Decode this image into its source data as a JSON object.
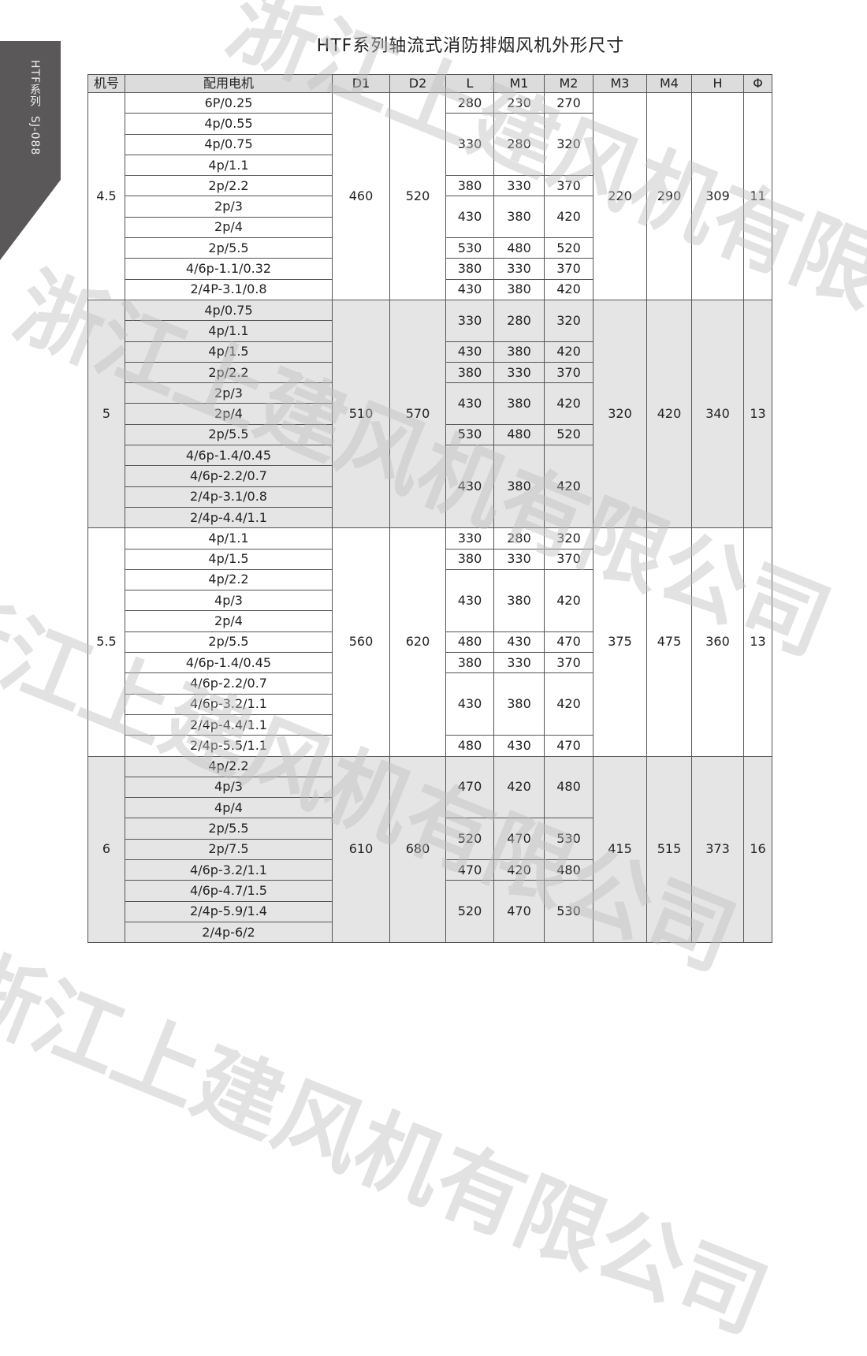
{
  "side_tab": {
    "text": "HTF系列  SJ-088"
  },
  "title": "HTF系列轴流式消防排烟风机外形尺寸",
  "watermark": "浙江上建风机有限公司",
  "colors": {
    "side_tab": "#5a5858",
    "shaded_section": "#e5e5e5",
    "header": "#dcdcdc"
  },
  "table": {
    "headers": [
      "机号",
      "配用电机",
      "D1",
      "D2",
      "L",
      "M1",
      "M2",
      "M3",
      "M4",
      "H",
      "Φ"
    ],
    "sections": [
      {
        "model": "4.5",
        "D1": "460",
        "D2": "520",
        "M3": "220",
        "M4": "290",
        "H": "309",
        "phi": "11",
        "shaded": false,
        "motors": [
          "6P/0.25",
          "4p/0.55",
          "4p/0.75",
          "4p/1.1",
          "2p/2.2",
          "2p/3",
          "2p/4",
          "2p/5.5",
          "4/6p-1.1/0.32",
          "2/4P-3.1/0.8"
        ],
        "dims": [
          {
            "L": "280",
            "M1": "230",
            "M2": "270",
            "rows": 1
          },
          {
            "L": "330",
            "M1": "280",
            "M2": "320",
            "rows": 3
          },
          {
            "L": "380",
            "M1": "330",
            "M2": "370",
            "rows": 1
          },
          {
            "L": "430",
            "M1": "380",
            "M2": "420",
            "rows": 2
          },
          {
            "L": "530",
            "M1": "480",
            "M2": "520",
            "rows": 1
          },
          {
            "L": "380",
            "M1": "330",
            "M2": "370",
            "rows": 1
          },
          {
            "L": "430",
            "M1": "380",
            "M2": "420",
            "rows": 1
          }
        ]
      },
      {
        "model": "5",
        "D1": "510",
        "D2": "570",
        "M3": "320",
        "M4": "420",
        "H": "340",
        "phi": "13",
        "shaded": true,
        "motors": [
          "4p/0.75",
          "4p/1.1",
          "4p/1.5",
          "2p/2.2",
          "2p/3",
          "2p/4",
          "2p/5.5",
          "4/6p-1.4/0.45",
          "4/6p-2.2/0.7",
          "2/4p-3.1/0.8",
          "2/4p-4.4/1.1"
        ],
        "dims": [
          {
            "L": "330",
            "M1": "280",
            "M2": "320",
            "rows": 2
          },
          {
            "L": "430",
            "M1": "380",
            "M2": "420",
            "rows": 1
          },
          {
            "L": "380",
            "M1": "330",
            "M2": "370",
            "rows": 1
          },
          {
            "L": "430",
            "M1": "380",
            "M2": "420",
            "rows": 2
          },
          {
            "L": "530",
            "M1": "480",
            "M2": "520",
            "rows": 1
          },
          {
            "L": "430",
            "M1": "380",
            "M2": "420",
            "rows": 4
          }
        ]
      },
      {
        "model": "5.5",
        "D1": "560",
        "D2": "620",
        "M3": "375",
        "M4": "475",
        "H": "360",
        "phi": "13",
        "shaded": false,
        "motors": [
          "4p/1.1",
          "4p/1.5",
          "4p/2.2",
          "4p/3",
          "2p/4",
          "2p/5.5",
          "4/6p-1.4/0.45",
          "4/6p-2.2/0.7",
          "4/6p-3.2/1.1",
          "2/4p-4.4/1.1",
          "2/4p-5.5/1.1"
        ],
        "dims": [
          {
            "L": "330",
            "M1": "280",
            "M2": "320",
            "rows": 1
          },
          {
            "L": "380",
            "M1": "330",
            "M2": "370",
            "rows": 1
          },
          {
            "L": "430",
            "M1": "380",
            "M2": "420",
            "rows": 3
          },
          {
            "L": "480",
            "M1": "430",
            "M2": "470",
            "rows": 1
          },
          {
            "L": "380",
            "M1": "330",
            "M2": "370",
            "rows": 1
          },
          {
            "L": "430",
            "M1": "380",
            "M2": "420",
            "rows": 3
          },
          {
            "L": "480",
            "M1": "430",
            "M2": "470",
            "rows": 1
          }
        ]
      },
      {
        "model": "6",
        "D1": "610",
        "D2": "680",
        "M3": "415",
        "M4": "515",
        "H": "373",
        "phi": "16",
        "shaded": true,
        "motors": [
          "4p/2.2",
          "4p/3",
          "4p/4",
          "2p/5.5",
          "2p/7.5",
          "4/6p-3.2/1.1",
          "4/6p-4.7/1.5",
          "2/4p-5.9/1.4",
          "2/4p-6/2"
        ],
        "dims": [
          {
            "L": "470",
            "M1": "420",
            "M2": "480",
            "rows": 3
          },
          {
            "L": "520",
            "M1": "470",
            "M2": "530",
            "rows": 2
          },
          {
            "L": "470",
            "M1": "420",
            "M2": "480",
            "rows": 1
          },
          {
            "L": "520",
            "M1": "470",
            "M2": "530",
            "rows": 3
          }
        ]
      }
    ]
  }
}
